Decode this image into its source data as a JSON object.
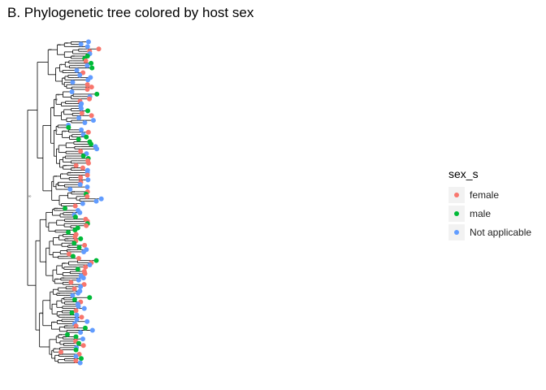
{
  "title": "B. Phylogenetic tree colored by host sex",
  "legend": {
    "title": "sex_s",
    "items": [
      {
        "label": "female",
        "color": "#F8766D"
      },
      {
        "label": "male",
        "color": "#00BA38"
      },
      {
        "label": "Not applicable",
        "color": "#619CFF"
      }
    ]
  },
  "node_labels": [
    "60",
    "98",
    "51",
    "0",
    "99",
    "87"
  ],
  "line_color": "#000000"
}
